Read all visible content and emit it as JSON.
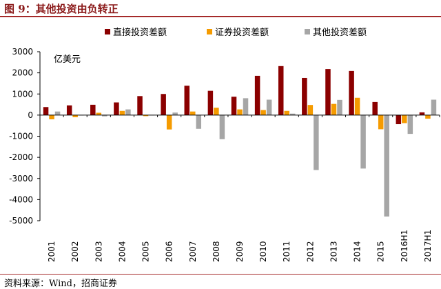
{
  "header": {
    "title": "图 9：其他投资由负转正"
  },
  "footer": {
    "source": "资料来源：Wind，招商证券"
  },
  "chart_data": {
    "type": "bar",
    "unit": "亿美元",
    "categories": [
      "2001",
      "2002",
      "2003",
      "2004",
      "2005",
      "2006",
      "2007",
      "2008",
      "2009",
      "2010",
      "2011",
      "2012",
      "2013",
      "2014",
      "2015",
      "2016H1",
      "2017H1"
    ],
    "series": [
      {
        "name": "直接投资差额",
        "color": "#8b0000",
        "values": [
          380,
          460,
          490,
          600,
          900,
          1000,
          1390,
          1150,
          870,
          1860,
          2320,
          1760,
          2180,
          2090,
          620,
          -430,
          130
        ]
      },
      {
        "name": "证券投资差额",
        "color": "#f59b00",
        "values": [
          -200,
          -100,
          110,
          200,
          -50,
          -680,
          170,
          350,
          270,
          240,
          200,
          480,
          530,
          820,
          -670,
          -380,
          -170
        ]
      },
      {
        "name": "其他投资差额",
        "color": "#a6a6a6",
        "values": [
          170,
          -20,
          -60,
          270,
          0,
          120,
          -650,
          -1140,
          800,
          730,
          70,
          -2600,
          720,
          -2530,
          -4800,
          -890,
          730
        ]
      }
    ],
    "ylim": [
      -5000,
      3000
    ],
    "yticks": [
      3000,
      2000,
      1000,
      0,
      -1000,
      -2000,
      -3000,
      -4000,
      -5000
    ],
    "grid": false,
    "legend_position": "top"
  }
}
